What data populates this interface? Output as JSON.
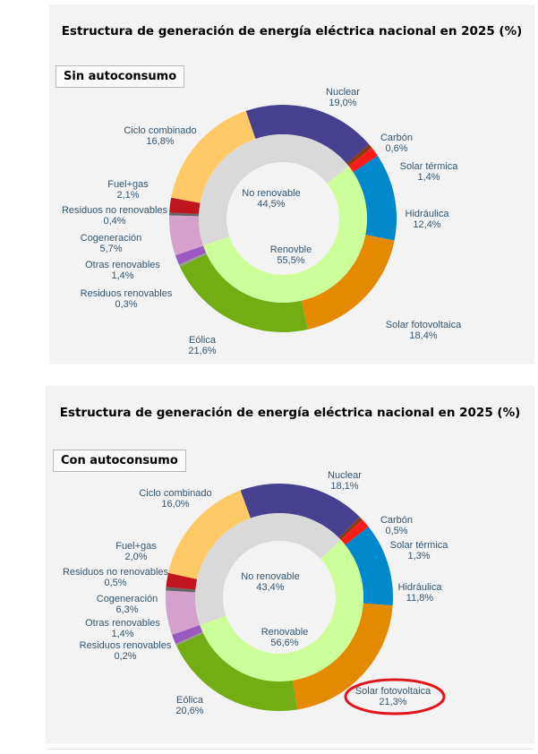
{
  "chart_data": [
    {
      "type": "pie",
      "title": "Estructura de generación de energía eléctrica nacional en 2025 (%)",
      "scenario_label": "Sin autoconsumo",
      "inner_ring": [
        {
          "label": "No renovable",
          "value": 44.5,
          "value_text": "44,5%",
          "color": "#d9d9d9"
        },
        {
          "label": "Renovble",
          "value": 55.5,
          "value_text": "55,5%",
          "color": "#ccff99"
        }
      ],
      "outer_ring": [
        {
          "label": "Nuclear",
          "value": 19.0,
          "value_text": "19,0%",
          "color": "#47408f"
        },
        {
          "label": "Carbón",
          "value": 0.6,
          "value_text": "0,6%",
          "color": "#8b3a0f"
        },
        {
          "label": "Solar térmica",
          "value": 1.4,
          "value_text": "1,4%",
          "color": "#ff1a1a"
        },
        {
          "label": "Hidráulica",
          "value": 12.4,
          "value_text": "12,4%",
          "color": "#0088cc"
        },
        {
          "label": "Solar fotovoltaica",
          "value": 18.4,
          "value_text": "18,4%",
          "color": "#e58a00"
        },
        {
          "label": "Eólica",
          "value": 21.6,
          "value_text": "21,6%",
          "color": "#72ad14"
        },
        {
          "label": "Residuos renovables",
          "value": 0.3,
          "value_text": "0,3%",
          "color": "#999999"
        },
        {
          "label": "Otras renovables",
          "value": 1.4,
          "value_text": "1,4%",
          "color": "#9b59c2"
        },
        {
          "label": "Cogeneración",
          "value": 5.7,
          "value_text": "5,7%",
          "color": "#d4a0cc"
        },
        {
          "label": "Residuos no renovables",
          "value": 0.4,
          "value_text": "0,4%",
          "color": "#666666"
        },
        {
          "label": "Fuel+gas",
          "value": 2.1,
          "value_text": "2,1%",
          "color": "#c0141e"
        },
        {
          "label": "Ciclo combinado",
          "value": 16.8,
          "value_text": "16,8%",
          "color": "#ffc966"
        }
      ]
    },
    {
      "type": "pie",
      "title": "Estructura de generación de energía eléctrica nacional en 2025 (%)",
      "scenario_label": "Con autoconsumo",
      "highlighted": "Solar fotovoltaica",
      "highlight_color": "#e0161b",
      "inner_ring": [
        {
          "label": "No renovable",
          "value": 43.4,
          "value_text": "43,4%",
          "color": "#d9d9d9"
        },
        {
          "label": "Renovable",
          "value": 56.6,
          "value_text": "56,6%",
          "color": "#ccff99"
        }
      ],
      "outer_ring": [
        {
          "label": "Nuclear",
          "value": 18.1,
          "value_text": "18,1%",
          "color": "#47408f"
        },
        {
          "label": "Carbón",
          "value": 0.5,
          "value_text": "0,5%",
          "color": "#8b3a0f"
        },
        {
          "label": "Solar térmica",
          "value": 1.3,
          "value_text": "1,3%",
          "color": "#ff1a1a"
        },
        {
          "label": "Hidráulica",
          "value": 11.8,
          "value_text": "11,8%",
          "color": "#0088cc"
        },
        {
          "label": "Solar fotovoltaica",
          "value": 21.3,
          "value_text": "21,3%",
          "color": "#e58a00"
        },
        {
          "label": "Eólica",
          "value": 20.6,
          "value_text": "20,6%",
          "color": "#72ad14"
        },
        {
          "label": "Residuos renovables",
          "value": 0.2,
          "value_text": "0,2%",
          "color": "#999999"
        },
        {
          "label": "Otras renovables",
          "value": 1.4,
          "value_text": "1,4%",
          "color": "#9b59c2"
        },
        {
          "label": "Cogeneración",
          "value": 6.3,
          "value_text": "6,3%",
          "color": "#d4a0cc"
        },
        {
          "label": "Residuos no renovables",
          "value": 0.5,
          "value_text": "0,5%",
          "color": "#666666"
        },
        {
          "label": "Fuel+gas",
          "value": 2.0,
          "value_text": "2,0%",
          "color": "#c0141e"
        },
        {
          "label": "Ciclo combinado",
          "value": 16.0,
          "value_text": "16,0%",
          "color": "#ffc966"
        }
      ]
    }
  ]
}
